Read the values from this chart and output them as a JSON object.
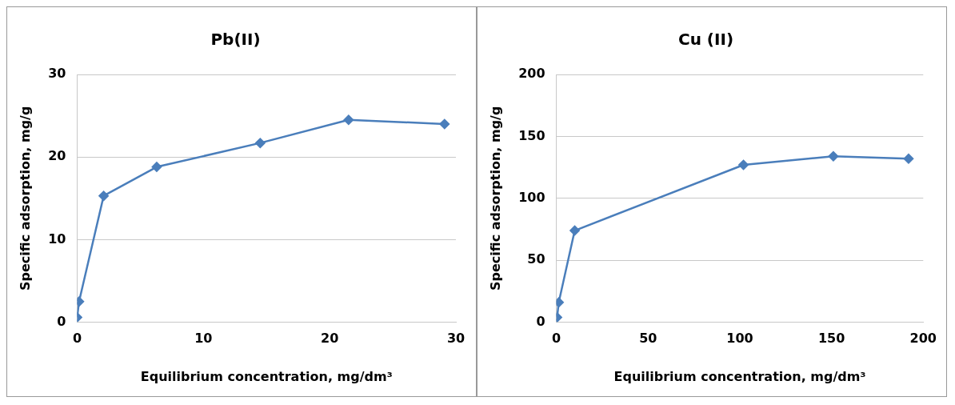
{
  "chart_data": [
    {
      "type": "line",
      "title": "Pb(II)",
      "xlabel": "Equilibrium concentration, mg/dm³",
      "ylabel": "Specific adsorption, mg/g",
      "x": [
        0,
        0.15,
        2.1,
        6.3,
        14.5,
        21.5,
        29.1
      ],
      "series": [
        {
          "color": "#4a7ebb",
          "values": [
            0.6,
            2.5,
            15.3,
            18.8,
            21.7,
            24.5,
            24.0
          ]
        }
      ],
      "xlim": [
        0,
        30
      ],
      "xticks": [
        0,
        10,
        20,
        30
      ],
      "ylim": [
        0,
        30
      ],
      "yticks": [
        0,
        10,
        20,
        30
      ],
      "grid": "y",
      "legend": false,
      "marker": "diamond",
      "line_style": "solid"
    },
    {
      "type": "line",
      "title": "Cu (II)",
      "xlabel": "Equilibrium concentration, mg/dm³",
      "ylabel": "Specific adsorption, mg/g",
      "x": [
        0.4,
        1.3,
        10,
        102,
        151,
        192
      ],
      "series": [
        {
          "color": "#4a7ebb",
          "values": [
            4,
            16,
            74,
            127,
            134,
            132
          ]
        }
      ],
      "xlim": [
        0,
        200
      ],
      "xticks": [
        0,
        50,
        100,
        150,
        200
      ],
      "ylim": [
        0,
        200
      ],
      "yticks": [
        0,
        50,
        100,
        150,
        200
      ],
      "grid": "y",
      "legend": false,
      "marker": "diamond",
      "line_style": "solid"
    }
  ]
}
